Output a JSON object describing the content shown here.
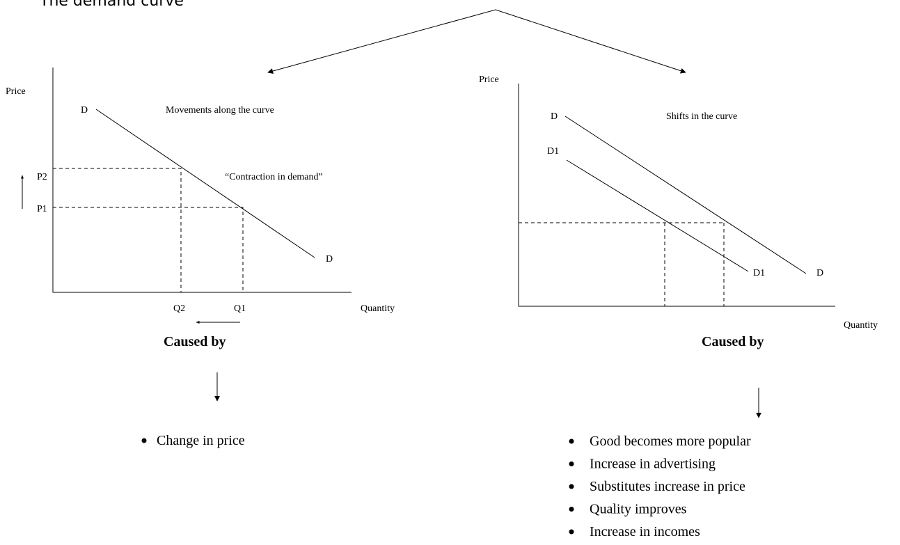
{
  "title": "The demand curve",
  "left": {
    "y_axis": "Price",
    "x_axis": "Quantity",
    "curve_start": "D",
    "curve_end": "D",
    "heading": "Movements along the curve",
    "annotation": "“Contraction in demand”",
    "price_labels": [
      "P2",
      "P1"
    ],
    "quantity_labels": [
      "Q2",
      "Q1"
    ],
    "caused_by": "Caused by",
    "causes": [
      "Change in price"
    ]
  },
  "right": {
    "y_axis": "Price",
    "x_axis": "Quantity",
    "heading": "Shifts in the curve",
    "curve_d_start": "D",
    "curve_d1_start": "D1",
    "curve_d1_end": "D1",
    "curve_d_end": "D",
    "caused_by": "Caused by",
    "causes": [
      "Good becomes more popular",
      "Increase in advertising",
      "Substitutes increase in price",
      "Quality improves",
      "Increase in incomes"
    ]
  }
}
